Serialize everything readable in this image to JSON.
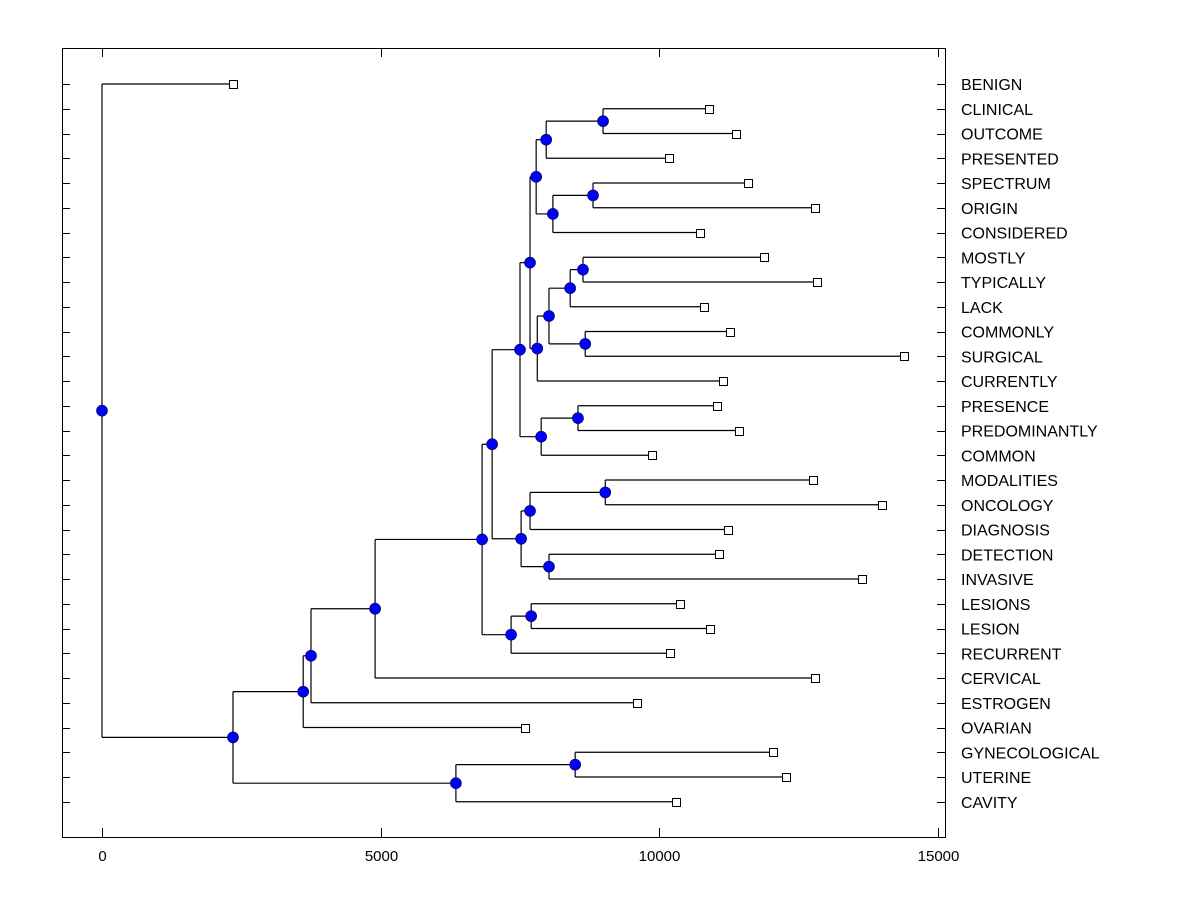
{
  "chart_data": {
    "type": "dendrogram",
    "title": "",
    "xlabel": "",
    "ylabel": "",
    "xlim": [
      -700,
      15150
    ],
    "xticks": [
      0,
      5000,
      10000,
      15000
    ],
    "xtick_labels": [
      "0",
      "5000",
      "10000",
      "15000"
    ],
    "grid": false,
    "node_color": "#0000ff",
    "leaf_marker": "open-square",
    "leaves": [
      {
        "label": "BENIGN",
        "value": 2350
      },
      {
        "label": "CLINICAL",
        "value": 10890
      },
      {
        "label": "OUTCOME",
        "value": 11380
      },
      {
        "label": "PRESENTED",
        "value": 10170
      },
      {
        "label": "SPECTRUM",
        "value": 11590
      },
      {
        "label": "ORIGIN",
        "value": 12790
      },
      {
        "label": "CONSIDERED",
        "value": 10730
      },
      {
        "label": "MOSTLY",
        "value": 11880
      },
      {
        "label": "TYPICALLY",
        "value": 12830
      },
      {
        "label": "LACK",
        "value": 10800
      },
      {
        "label": "COMMONLY",
        "value": 11270
      },
      {
        "label": "SURGICAL",
        "value": 14390
      },
      {
        "label": "CURRENTLY",
        "value": 11140
      },
      {
        "label": "PRESENCE",
        "value": 11040
      },
      {
        "label": "PREDOMINANTLY",
        "value": 11430
      },
      {
        "label": "COMMON",
        "value": 9870
      },
      {
        "label": "MODALITIES",
        "value": 12760
      },
      {
        "label": "ONCOLOGY",
        "value": 14000
      },
      {
        "label": "DIAGNOSIS",
        "value": 11230
      },
      {
        "label": "DETECTION",
        "value": 11070
      },
      {
        "label": "INVASIVE",
        "value": 13640
      },
      {
        "label": "LESIONS",
        "value": 10370
      },
      {
        "label": "LESION",
        "value": 10910
      },
      {
        "label": "RECURRENT",
        "value": 10190
      },
      {
        "label": "CERVICAL",
        "value": 12790
      },
      {
        "label": "ESTROGEN",
        "value": 9600
      },
      {
        "label": "OVARIAN",
        "value": 7590
      },
      {
        "label": "GYNECOLOGICAL",
        "value": 12040
      },
      {
        "label": "UTERINE",
        "value": 12270
      },
      {
        "label": "CAVITY",
        "value": 10300
      }
    ],
    "tree": {
      "value": 0,
      "children": [
        {
          "leaf": 0
        },
        {
          "value": 2350,
          "children": [
            {
              "value": 3610,
              "children": [
                {
                  "value": 3750,
                  "children": [
                    {
                      "value": 4900,
                      "children": [
                        {
                          "value": 6820,
                          "children": [
                            {
                              "value": 7000,
                              "children": [
                                {
                                  "value": 7500,
                                  "children": [
                                    {
                                      "value": 7680,
                                      "children": [
                                        {
                                          "value": 7790,
                                          "children": [
                                            {
                                              "value": 7970,
                                              "children": [
                                                {
                                                  "value": 8990,
                                                  "children": [
                                                    {
                                                      "leaf": 1
                                                    },
                                                    {
                                                      "leaf": 2
                                                    }
                                                  ]
                                                },
                                                {
                                                  "leaf": 3
                                                }
                                              ]
                                            },
                                            {
                                              "value": 8090,
                                              "children": [
                                                {
                                                  "value": 8810,
                                                  "children": [
                                                    {
                                                      "leaf": 4
                                                    },
                                                    {
                                                      "leaf": 5
                                                    }
                                                  ]
                                                },
                                                {
                                                  "leaf": 6
                                                }
                                              ]
                                            }
                                          ]
                                        },
                                        {
                                          "value": 7810,
                                          "children": [
                                            {
                                              "value": 8020,
                                              "children": [
                                                {
                                                  "value": 8400,
                                                  "children": [
                                                    {
                                                      "value": 8630,
                                                      "children": [
                                                        {
                                                          "leaf": 7
                                                        },
                                                        {
                                                          "leaf": 8
                                                        }
                                                      ]
                                                    },
                                                    {
                                                      "leaf": 9
                                                    }
                                                  ]
                                                },
                                                {
                                                  "value": 8670,
                                                  "children": [
                                                    {
                                                      "leaf": 10
                                                    },
                                                    {
                                                      "leaf": 11
                                                    }
                                                  ]
                                                }
                                              ]
                                            },
                                            {
                                              "leaf": 12
                                            }
                                          ]
                                        }
                                      ]
                                    },
                                    {
                                      "value": 7880,
                                      "children": [
                                        {
                                          "value": 8540,
                                          "children": [
                                            {
                                              "leaf": 13
                                            },
                                            {
                                              "leaf": 14
                                            }
                                          ]
                                        },
                                        {
                                          "leaf": 15
                                        }
                                      ]
                                    }
                                  ]
                                },
                                {
                                  "value": 7520,
                                  "children": [
                                    {
                                      "value": 7680,
                                      "children": [
                                        {
                                          "value": 9030,
                                          "children": [
                                            {
                                              "leaf": 16
                                            },
                                            {
                                              "leaf": 17
                                            }
                                          ]
                                        },
                                        {
                                          "leaf": 18
                                        }
                                      ]
                                    },
                                    {
                                      "value": 8020,
                                      "children": [
                                        {
                                          "leaf": 19
                                        },
                                        {
                                          "leaf": 20
                                        }
                                      ]
                                    }
                                  ]
                                }
                              ]
                            },
                            {
                              "value": 7340,
                              "children": [
                                {
                                  "value": 7700,
                                  "children": [
                                    {
                                      "leaf": 21
                                    },
                                    {
                                      "leaf": 22
                                    }
                                  ]
                                },
                                {
                                  "leaf": 23
                                }
                              ]
                            }
                          ]
                        },
                        {
                          "leaf": 24
                        }
                      ]
                    },
                    {
                      "leaf": 25
                    }
                  ]
                },
                {
                  "leaf": 26
                }
              ]
            },
            {
              "value": 6350,
              "children": [
                {
                  "value": 8490,
                  "children": [
                    {
                      "leaf": 27
                    },
                    {
                      "leaf": 28
                    }
                  ]
                },
                {
                  "leaf": 29
                }
              ]
            }
          ]
        }
      ]
    }
  }
}
